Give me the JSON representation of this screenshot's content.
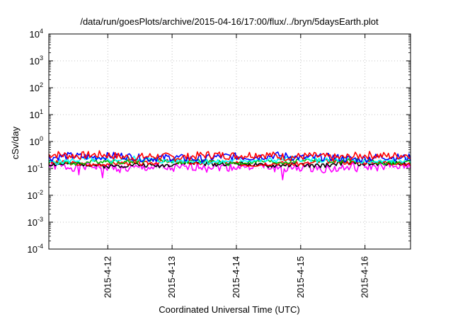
{
  "chart_data": {
    "type": "line",
    "title": "/data/run/goesPlots/archive/2015-04-16/17:00/flux/../bryn/5daysEarth.plot",
    "xlabel": "Coordinated Universal Time (UTC)",
    "ylabel": "cSv/day",
    "yscale": "log",
    "ylim": [
      0.0001,
      10000
    ],
    "xlim": [
      "2015-04-11 02:00",
      "2015-04-16 17:00"
    ],
    "y_ticks": [
      {
        "value": 0.0001,
        "base": "10",
        "exp": "-4"
      },
      {
        "value": 0.001,
        "base": "10",
        "exp": "-3"
      },
      {
        "value": 0.01,
        "base": "10",
        "exp": "-2"
      },
      {
        "value": 0.1,
        "base": "10",
        "exp": "-1"
      },
      {
        "value": 1,
        "base": "10",
        "exp": "0"
      },
      {
        "value": 10,
        "base": "10",
        "exp": "1"
      },
      {
        "value": 100,
        "base": "10",
        "exp": "2"
      },
      {
        "value": 1000,
        "base": "10",
        "exp": "3"
      },
      {
        "value": 10000,
        "base": "10",
        "exp": "4"
      }
    ],
    "x_ticks": [
      {
        "date": "2015-04-12 00:00",
        "label": "2015-4-12"
      },
      {
        "date": "2015-04-13 00:00",
        "label": "2015-4-13"
      },
      {
        "date": "2015-04-14 00:00",
        "label": "2015-4-14"
      },
      {
        "date": "2015-04-15 00:00",
        "label": "2015-4-15"
      },
      {
        "date": "2015-04-16 00:00",
        "label": "2015-4-16"
      }
    ],
    "grid": true,
    "series": [
      {
        "color": "#ff00ff",
        "level": 0.11,
        "seed": 1,
        "jitter": 0.16,
        "dips": [
          {
            "x": "2015-04-11 13:00",
            "y": 0.058
          },
          {
            "x": "2015-04-11 22:00",
            "y": 0.045
          },
          {
            "x": "2015-04-13 13:00",
            "y": 0.072
          },
          {
            "x": "2015-04-14 17:00",
            "y": 0.038
          },
          {
            "x": "2015-04-15 21:00",
            "y": 0.075
          }
        ]
      },
      {
        "color": "#000000",
        "level": 0.14,
        "seed": 2,
        "jitter": 0.08,
        "dips": []
      },
      {
        "color": "#ff0000",
        "level": 0.16,
        "seed": 3,
        "jitter": 0.08,
        "dips": []
      },
      {
        "color": "#00bb00",
        "level": 0.18,
        "seed": 4,
        "jitter": 0.08,
        "dips": []
      },
      {
        "color": "#00ffff",
        "level": 0.2,
        "seed": 5,
        "jitter": 0.1,
        "dips": []
      },
      {
        "color": "#0000ff",
        "level": 0.26,
        "seed": 6,
        "jitter": 0.14,
        "dips": []
      },
      {
        "color": "#ff0000",
        "level": 0.29,
        "seed": 7,
        "jitter": 0.15,
        "dips": []
      }
    ]
  }
}
